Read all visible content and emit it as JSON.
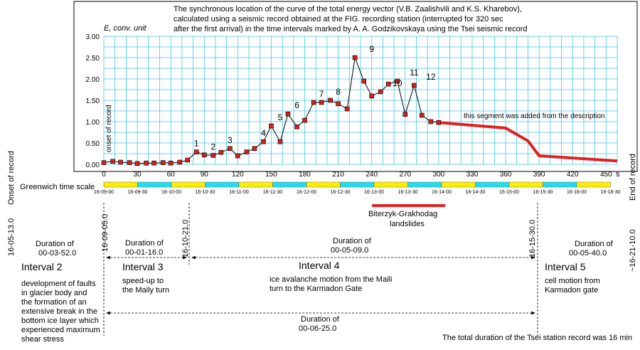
{
  "chart_data": {
    "type": "line",
    "title_lines": [
      "The synchronous location of the curve of the total energy vector (V.B. Zaalishvili and K.S. Kharebov),",
      "calculated using a seismic record obtained at the FIG. recording station (interrupted for 320 sec",
      "after the first arrival) in the time intervals marked by A. A. Godzikovskaya using the Tsei seismic record"
    ],
    "ylabel": "E, conv. unit",
    "xunit": "s",
    "xlim": [
      0,
      460
    ],
    "ylim": [
      0,
      3
    ],
    "x_ticks": [
      0,
      30,
      60,
      90,
      120,
      150,
      180,
      210,
      240,
      270,
      300,
      330,
      360,
      390,
      420,
      450
    ],
    "y_ticks": [
      "0.00",
      "0.50",
      "1.00",
      "1.50",
      "2.00",
      "2.50",
      "3.00"
    ],
    "grid": true,
    "series": [
      {
        "points": [
          [
            0,
            0.04
          ],
          [
            8,
            0.07
          ],
          [
            15,
            0.05
          ],
          [
            23,
            0.04
          ],
          [
            30,
            0.02
          ],
          [
            38,
            0.03
          ],
          [
            45,
            0.03
          ],
          [
            53,
            0.04
          ],
          [
            60,
            0.03
          ],
          [
            68,
            0.05
          ],
          [
            75,
            0.1
          ],
          [
            83,
            0.29
          ],
          [
            90,
            0.22
          ],
          [
            98,
            0.21
          ],
          [
            105,
            0.28
          ],
          [
            113,
            0.37
          ],
          [
            120,
            0.2
          ],
          [
            128,
            0.29
          ],
          [
            135,
            0.37
          ],
          [
            143,
            0.53
          ],
          [
            150,
            0.9
          ],
          [
            158,
            0.53
          ],
          [
            165,
            1.18
          ],
          [
            173,
            0.88
          ],
          [
            180,
            1.03
          ],
          [
            188,
            1.45
          ],
          [
            195,
            1.45
          ],
          [
            203,
            1.5
          ],
          [
            210,
            1.42
          ],
          [
            218,
            1.3
          ],
          [
            225,
            2.5
          ],
          [
            233,
            1.95
          ],
          [
            240,
            1.6
          ],
          [
            248,
            1.7
          ],
          [
            255,
            1.88
          ],
          [
            263,
            1.95
          ],
          [
            270,
            1.17
          ],
          [
            278,
            1.85
          ],
          [
            285,
            1.15
          ],
          [
            293,
            1.0
          ],
          [
            300,
            0.98
          ]
        ]
      },
      {
        "points": [
          [
            300,
            0.98
          ],
          [
            360,
            0.85
          ],
          [
            380,
            0.55
          ],
          [
            390,
            0.2
          ],
          [
            460,
            0.08
          ]
        ]
      }
    ],
    "peak_labels": [
      {
        "text": "1",
        "x": 83,
        "y": 0.29
      },
      {
        "text": "2",
        "x": 98,
        "y": 0.21
      },
      {
        "text": "3",
        "x": 113,
        "y": 0.37
      },
      {
        "text": "4",
        "x": 143,
        "y": 0.53
      },
      {
        "text": "5",
        "x": 158,
        "y": 0.9
      },
      {
        "text": "6",
        "x": 173,
        "y": 1.18
      },
      {
        "text": "7",
        "x": 195,
        "y": 1.45
      },
      {
        "text": "8",
        "x": 210,
        "y": 1.5
      },
      {
        "text": "9",
        "x": 240,
        "y": 2.5
      },
      {
        "text": "10",
        "x": 263,
        "y": 1.7
      },
      {
        "text": "11",
        "x": 278,
        "y": 1.95
      },
      {
        "text": "12",
        "x": 293,
        "y": 1.85
      }
    ],
    "annotations": {
      "onset_vertical": "onset of record",
      "added_segment": "this segment was added from the description",
      "onset_side": "Onset of record",
      "end_side": "End of record"
    },
    "colors": {
      "grid": "#3ec9e6",
      "plot_line": "#000000",
      "marker": "#d81e1e",
      "added_segment": "#e21f1f",
      "scale_yellow": "#ffee00",
      "scale_cyan": "#22ddee",
      "landslide_bar": "#e21f1f"
    }
  },
  "time_scale": {
    "label": "Greenwich time scale",
    "ticks": [
      "16-09-00",
      "16-09-30",
      "16-10-00",
      "16-10-30",
      "16-11-00",
      "16-11-30",
      "16-12-00",
      "16-12-30",
      "16-13-00",
      "16-13-30",
      "16-14-00",
      "16-14-30",
      "16-15-00",
      "16-15-30",
      "16-16-00",
      "16-16-30"
    ]
  },
  "landslides": {
    "line1": "Biterzyk-Grakhodag",
    "line2": "landslides"
  },
  "time_marks": [
    "16-05-13.0",
    "16-09-05.0",
    "16-10-21.0",
    "16-15-30.0",
    "~16-21-10.0"
  ],
  "intervals": [
    {
      "name": "Interval 2",
      "duration_l1": "Duration of",
      "duration_l2": "00-03-52.0",
      "desc": [
        "development of faults",
        "in glacier body and",
        "the formation of an",
        "extensive break in the",
        "bottom ice layer which",
        "experienced maximum",
        "shear stress"
      ]
    },
    {
      "name": "Interval 3",
      "duration_l1": "Duration of",
      "duration_l2": "00-01-16.0",
      "desc": [
        "speed-up to",
        "the Maily turn"
      ]
    },
    {
      "name": "Interval 4",
      "duration_l1": "Duration of",
      "duration_l2": "00-05-09.0",
      "desc": [
        "ice avalanche motion from the Maili",
        "turn to the Karmadon Gate"
      ]
    },
    {
      "name": "Interval 5",
      "duration_l1": "Duration of",
      "duration_l2": "00-05-40.0",
      "desc": [
        "cell motion from",
        "Karmadon gate"
      ]
    }
  ],
  "total_duration": {
    "l1": "Duration of",
    "l2": "00-06-25.0"
  },
  "footer_note": "The total duration of the Tsei station record was 16 min"
}
